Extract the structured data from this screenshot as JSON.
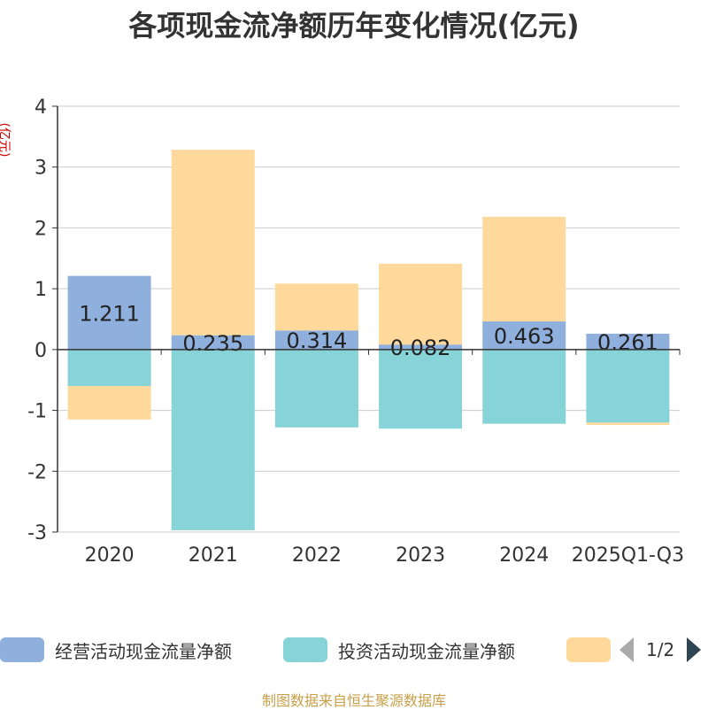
{
  "chart_data": {
    "type": "bar",
    "stacked": true,
    "title": "各项现金流净额历年变化情况(亿元)",
    "ylabel": "(亿元)",
    "xlabel": "",
    "categories": [
      "2020",
      "2021",
      "2022",
      "2023",
      "2024",
      "2025Q1-Q3"
    ],
    "ylim": [
      -3,
      4
    ],
    "yticks": [
      4,
      3,
      2,
      1,
      0,
      -1,
      -2,
      -3
    ],
    "grid": true,
    "legend_position": "bottom",
    "series": [
      {
        "name": "经营活动现金流量净额",
        "color": "#8fafdc",
        "values": [
          1.211,
          0.235,
          0.314,
          0.082,
          0.463,
          0.261
        ],
        "labels": [
          "1.211",
          "0.235",
          "0.314",
          "0.082",
          "0.463",
          "0.261"
        ]
      },
      {
        "name": "投资活动现金流量净额",
        "color": "#86d4d8",
        "values": [
          -0.6,
          -2.97,
          -1.28,
          -1.3,
          -1.22,
          -1.2
        ]
      },
      {
        "name": "",
        "color": "#ffd99b",
        "values": [
          -0.55,
          3.05,
          0.77,
          1.33,
          1.72,
          -0.04
        ]
      }
    ]
  },
  "legend": {
    "items": [
      {
        "label": "经营活动现金流量净额",
        "color": "#8fafdc"
      },
      {
        "label": "投资活动现金流量净额",
        "color": "#86d4d8"
      },
      {
        "label": "",
        "color": "#ffd99b"
      }
    ],
    "page": "1/2"
  },
  "footer": {
    "source": "制图数据来自恒生聚源数据库"
  }
}
